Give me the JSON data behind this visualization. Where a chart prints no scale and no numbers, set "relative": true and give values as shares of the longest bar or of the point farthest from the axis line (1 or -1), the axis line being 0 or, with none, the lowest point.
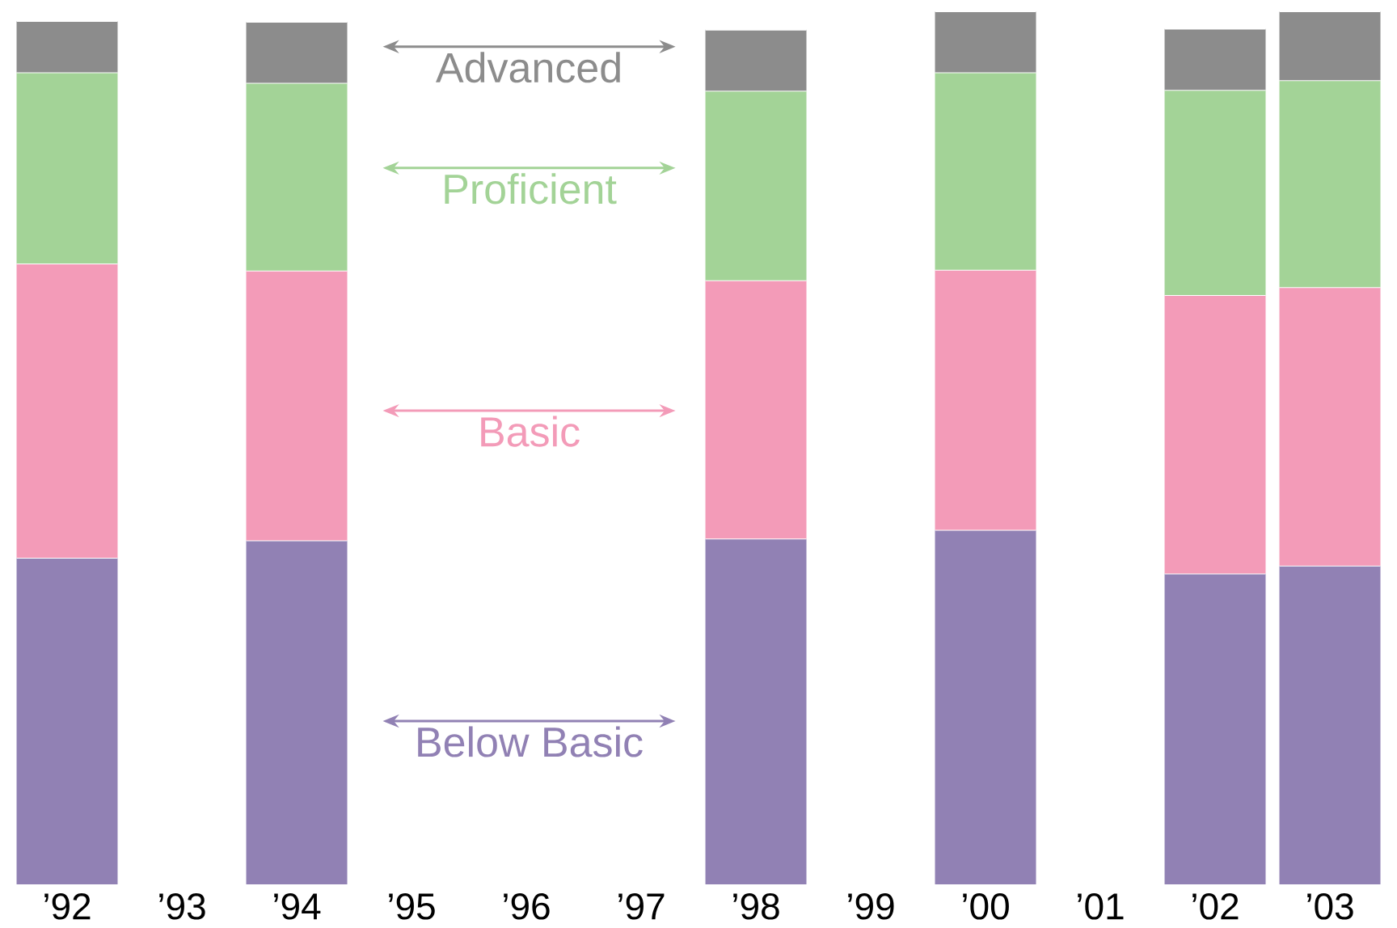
{
  "chart_data": {
    "type": "bar",
    "stacked": true,
    "relative": true,
    "legend": "center",
    "categories": [
      "’92",
      "’93",
      "’94",
      "’95",
      "’96",
      "’97",
      "’98",
      "’99",
      "’00",
      "’01",
      "’02",
      "’03"
    ],
    "series": [
      {
        "name": "Below Basic",
        "color": "#9181b4",
        "values": [
          0.374,
          null,
          0.394,
          null,
          null,
          null,
          0.396,
          null,
          0.406,
          null,
          0.356,
          0.365
        ]
      },
      {
        "name": "Basic",
        "color": "#f39bb8",
        "values": [
          0.337,
          null,
          0.309,
          null,
          null,
          null,
          0.296,
          null,
          0.298,
          null,
          0.319,
          0.319
        ]
      },
      {
        "name": "Proficient",
        "color": "#a3d397",
        "values": [
          0.219,
          null,
          0.215,
          null,
          null,
          null,
          0.217,
          null,
          0.226,
          null,
          0.235,
          0.237
        ]
      },
      {
        "name": "Advanced",
        "color": "#8c8c8c",
        "values": [
          0.059,
          null,
          0.07,
          null,
          null,
          null,
          0.07,
          null,
          0.07,
          null,
          0.07,
          0.079
        ]
      }
    ]
  }
}
